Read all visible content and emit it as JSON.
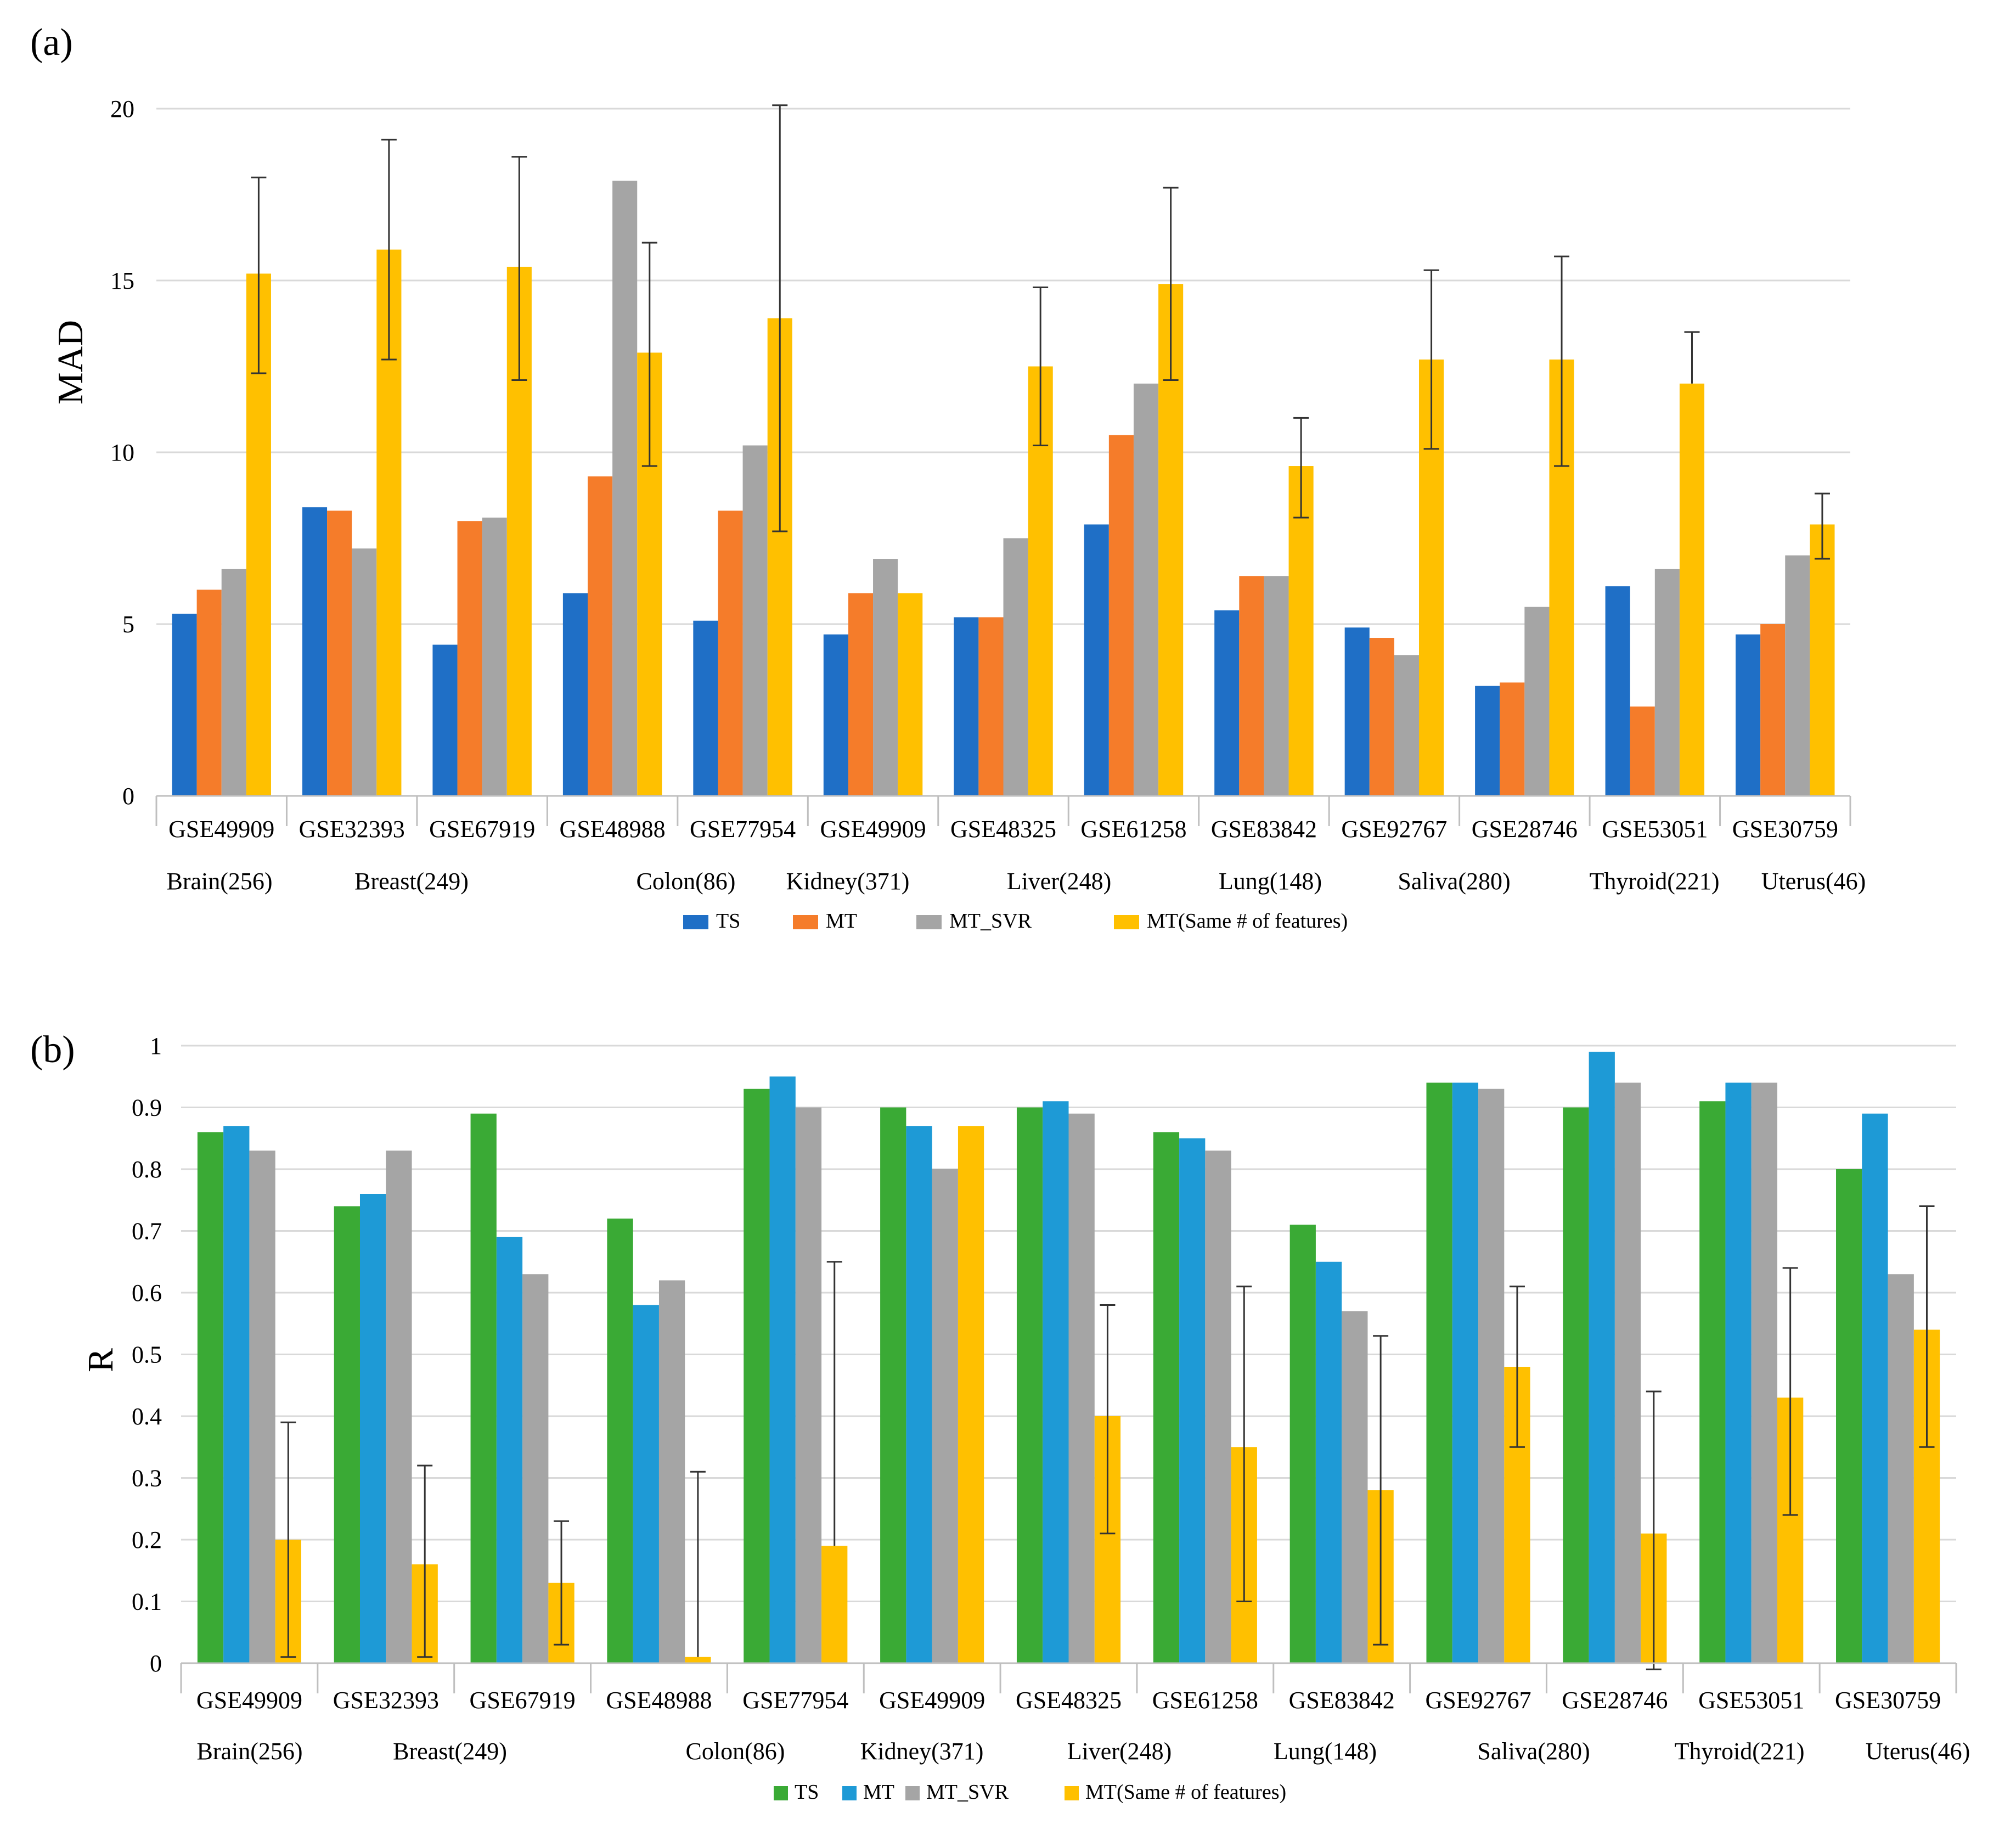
{
  "chart_data": [
    {
      "type": "bar",
      "panel_label": "(a)",
      "ylabel": "MAD",
      "ylim": [
        0,
        20
      ],
      "yticks": [
        "0",
        "5",
        "10",
        "15",
        "20"
      ],
      "grid": true,
      "legend_position": "bottom",
      "categories": [
        "GSE49909",
        "GSE32393",
        "GSE67919",
        "GSE48988",
        "GSE77954",
        "GSE49909",
        "GSE48325",
        "GSE61258",
        "GSE83842",
        "GSE92767",
        "GSE28746",
        "GSE53051",
        "GSE30759"
      ],
      "group_labels": [
        "Brain(256)",
        "Breast(249)",
        "Colon(86)",
        "Kidney(371)",
        "Liver(248)",
        "Lung(148)",
        "Saliva(280)",
        "Thyroid(221)",
        "Uterus(46)"
      ],
      "series": [
        {
          "name": "TS",
          "color": "#1f6fc6",
          "values": [
            5.3,
            8.4,
            4.4,
            5.9,
            5.1,
            4.7,
            5.2,
            7.9,
            5.4,
            4.9,
            3.2,
            6.1,
            4.7
          ]
        },
        {
          "name": "MT",
          "color": "#f57c2a",
          "values": [
            6.0,
            8.3,
            8.0,
            9.3,
            8.3,
            5.9,
            5.2,
            10.5,
            6.4,
            4.6,
            3.3,
            2.6,
            5.0
          ]
        },
        {
          "name": "MT_SVR",
          "color": "#a5a5a5",
          "values": [
            6.6,
            7.2,
            8.1,
            17.9,
            10.2,
            6.9,
            7.5,
            12.0,
            6.4,
            4.1,
            5.5,
            6.6,
            7.0
          ]
        },
        {
          "name": "MT(Same # of features)",
          "color": "#ffc000",
          "values": [
            15.2,
            15.9,
            15.4,
            12.9,
            13.9,
            5.9,
            12.5,
            14.9,
            9.6,
            12.7,
            12.7,
            12.0,
            7.9
          ],
          "error_low": [
            12.3,
            12.7,
            12.1,
            9.6,
            7.7,
            null,
            10.2,
            12.1,
            8.1,
            10.1,
            9.6,
            null,
            6.9
          ],
          "error_high": [
            18.0,
            19.1,
            18.6,
            16.1,
            20.1,
            null,
            14.8,
            17.7,
            11.0,
            15.3,
            15.7,
            13.5,
            8.8
          ]
        }
      ]
    },
    {
      "type": "bar",
      "panel_label": "(b)",
      "ylabel": "R",
      "ylim": [
        0,
        1
      ],
      "yticks": [
        "0",
        "0.1",
        "0.2",
        "0.3",
        "0.4",
        "0.5",
        "0.6",
        "0.7",
        "0.8",
        "0.9",
        "1"
      ],
      "grid": true,
      "legend_position": "bottom",
      "categories": [
        "GSE49909",
        "GSE32393",
        "GSE67919",
        "GSE48988",
        "GSE77954",
        "GSE49909",
        "GSE48325",
        "GSE61258",
        "GSE83842",
        "GSE92767",
        "GSE28746",
        "GSE53051",
        "GSE30759"
      ],
      "group_labels": [
        "Brain(256)",
        "Breast(249)",
        "Colon(86)",
        "Kidney(371)",
        "Liver(248)",
        "Lung(148)",
        "Saliva(280)",
        "Thyroid(221)",
        "Uterus(46)"
      ],
      "series": [
        {
          "name": "TS",
          "color": "#3aaa35",
          "values": [
            0.86,
            0.74,
            0.89,
            0.72,
            0.93,
            0.9,
            0.9,
            0.86,
            0.71,
            0.94,
            0.9,
            0.91,
            0.8
          ]
        },
        {
          "name": "MT",
          "color": "#1e9ad6",
          "values": [
            0.87,
            0.76,
            0.69,
            0.58,
            0.95,
            0.87,
            0.91,
            0.85,
            0.65,
            0.94,
            0.99,
            0.94,
            0.89
          ]
        },
        {
          "name": "MT_SVR",
          "color": "#a5a5a5",
          "values": [
            0.83,
            0.83,
            0.63,
            0.62,
            0.9,
            0.8,
            0.89,
            0.83,
            0.57,
            0.93,
            0.94,
            0.94,
            0.63
          ]
        },
        {
          "name": "MT(Same # of features)",
          "color": "#ffc000",
          "values": [
            0.2,
            0.16,
            0.13,
            0.01,
            0.19,
            0.87,
            0.4,
            0.35,
            0.28,
            0.48,
            0.21,
            0.43,
            0.54
          ],
          "error_low": [
            0.01,
            0.01,
            0.03,
            null,
            null,
            null,
            0.21,
            0.1,
            0.03,
            0.35,
            -0.01,
            0.24,
            0.35
          ],
          "error_high": [
            0.39,
            0.32,
            0.23,
            0.31,
            0.65,
            null,
            0.58,
            0.61,
            0.53,
            0.61,
            0.44,
            0.64,
            0.74
          ]
        }
      ]
    }
  ]
}
